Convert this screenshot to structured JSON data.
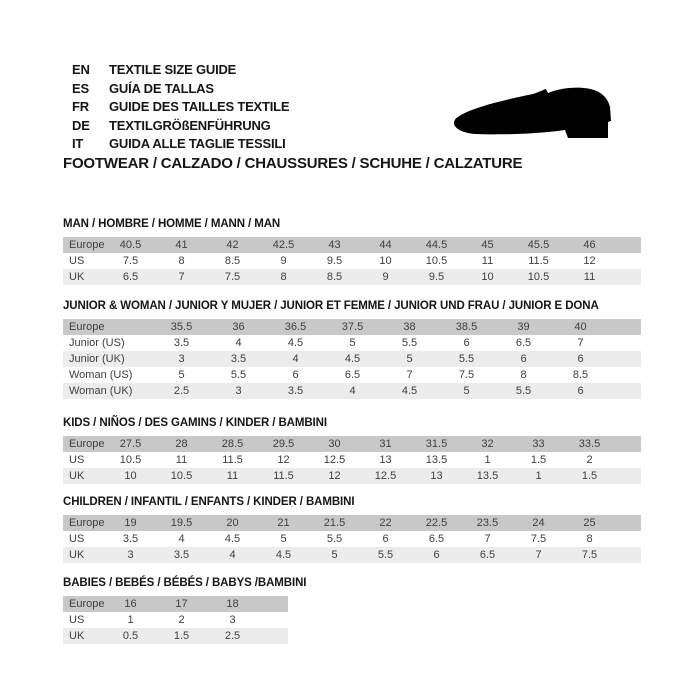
{
  "header": {
    "languages": [
      {
        "code": "EN",
        "label": "TEXTILE SIZE GUIDE"
      },
      {
        "code": "ES",
        "label": "GUÍA DE TALLAS"
      },
      {
        "code": "FR",
        "label": "GUIDE DES TAILLES TEXTILE"
      },
      {
        "code": "DE",
        "label": "TEXTILGRÖßENFÜHRUNG"
      },
      {
        "code": "IT",
        "label": "GUIDA ALLE TAGLIE TESSILI"
      }
    ],
    "shoe_icon": "dress-shoe-silhouette",
    "category_line": "FOOTWEAR / CALZADO / CHAUSSURES / SCHUHE / CALZATURE"
  },
  "tables": [
    {
      "title": "MAN / HOMBRE / HOMME / MANN / MAN",
      "header_label": "Europe",
      "header_values": [
        "40.5",
        "41",
        "42",
        "42.5",
        "43",
        "44",
        "44.5",
        "45",
        "45.5",
        "46"
      ],
      "rows": [
        {
          "label": "US",
          "values": [
            "7.5",
            "8",
            "8.5",
            "9",
            "9.5",
            "10",
            "10.5",
            "11",
            "11.5",
            "12"
          ]
        },
        {
          "label": "UK",
          "values": [
            "6.5",
            "7",
            "7.5",
            "8",
            "8.5",
            "9",
            "9.5",
            "10",
            "10.5",
            "11"
          ]
        }
      ]
    },
    {
      "title": "JUNIOR & WOMAN / JUNIOR Y MUJER / JUNIOR ET FEMME / JUNIOR UND FRAU / JUNIOR E DONA",
      "header_label": "Europe",
      "header_values": [
        "35.5",
        "36",
        "36.5",
        "37.5",
        "38",
        "38.5",
        "39",
        "40"
      ],
      "rows": [
        {
          "label": "Junior (US)",
          "values": [
            "3.5",
            "4",
            "4.5",
            "5",
            "5.5",
            "6",
            "6.5",
            "7"
          ]
        },
        {
          "label": "Junior (UK)",
          "values": [
            "3",
            "3.5",
            "4",
            "4.5",
            "5",
            "5.5",
            "6",
            "6"
          ]
        },
        {
          "label": "Woman (US)",
          "values": [
            "5",
            "5.5",
            "6",
            "6.5",
            "7",
            "7.5",
            "8",
            "8.5"
          ]
        },
        {
          "label": "Woman (UK)",
          "values": [
            "2.5",
            "3",
            "3.5",
            "4",
            "4.5",
            "5",
            "5.5",
            "6"
          ]
        }
      ]
    },
    {
      "title": "KIDS / NIÑOS / DES GAMINS / KINDER / BAMBINI",
      "header_label": "Europe",
      "header_values": [
        "27.5",
        "28",
        "28.5",
        "29.5",
        "30",
        "31",
        "31.5",
        "32",
        "33",
        "33.5"
      ],
      "rows": [
        {
          "label": "US",
          "values": [
            "10.5",
            "11",
            "11.5",
            "12",
            "12.5",
            "13",
            "13.5",
            "1",
            "1.5",
            "2"
          ]
        },
        {
          "label": "UK",
          "values": [
            "10",
            "10.5",
            "11",
            "11.5",
            "12",
            "12.5",
            "13",
            "13.5",
            "1",
            "1.5"
          ]
        }
      ]
    },
    {
      "title": "CHILDREN / INFANTIL / ENFANTS / KINDER / BAMBINI",
      "header_label": "Europe",
      "header_values": [
        "19",
        "19.5",
        "20",
        "21",
        "21.5",
        "22",
        "22.5",
        "23.5",
        "24",
        "25"
      ],
      "rows": [
        {
          "label": "US",
          "values": [
            "3.5",
            "4",
            "4.5",
            "5",
            "5.5",
            "6",
            "6.5",
            "7",
            "7.5",
            "8"
          ]
        },
        {
          "label": "UK",
          "values": [
            "3",
            "3.5",
            "4",
            "4.5",
            "5",
            "5.5",
            "6",
            "6.5",
            "7",
            "7.5"
          ]
        }
      ]
    },
    {
      "title": "BABIES / BEBÉS / BÉBÉS / BABYS /BAMBINI",
      "header_label": "Europe",
      "header_values": [
        "16",
        "17",
        "18"
      ],
      "rows": [
        {
          "label": "US",
          "values": [
            "1",
            "2",
            "3"
          ]
        },
        {
          "label": "UK",
          "values": [
            "0.5",
            "1.5",
            "2.5"
          ]
        }
      ]
    }
  ],
  "colors": {
    "header_row_bg": "#c8c8c8",
    "alt_row_bg": "#ececec",
    "table_text": "#3e3e3e",
    "heading_text": "#161616",
    "shoe_icon": "#000000"
  }
}
